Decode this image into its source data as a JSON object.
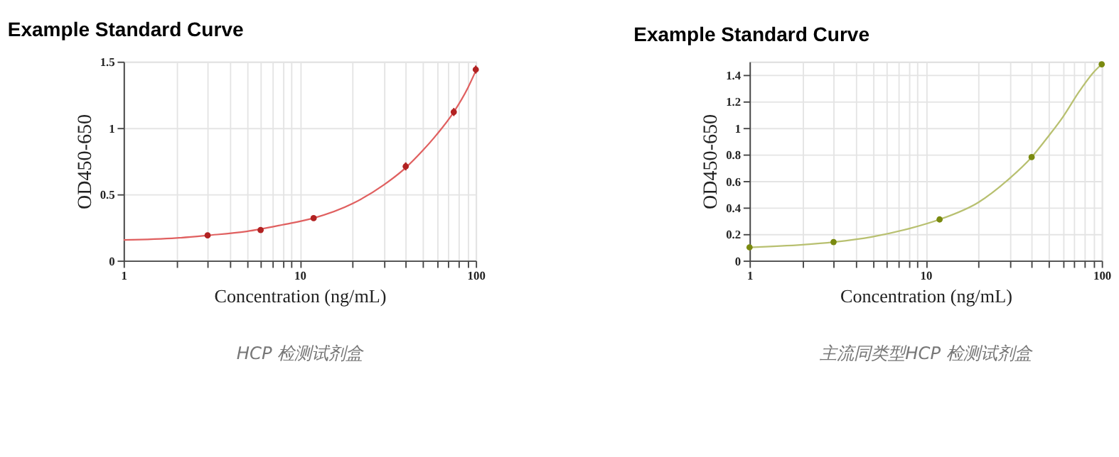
{
  "chart_data": [
    {
      "type": "scatter",
      "title": "Example Standard Curve",
      "xlabel": "Concentration (ng/mL)",
      "ylabel": "OD450-650",
      "log": "x",
      "grid": true,
      "marker": "circle",
      "xlim": [
        1,
        100
      ],
      "xticks": [
        1,
        {
          "value": 2,
          "label": null
        },
        {
          "value": 3,
          "label": null
        },
        {
          "value": 4,
          "label": null
        },
        {
          "value": 5,
          "label": null
        },
        {
          "value": 6,
          "label": null
        },
        {
          "value": 7,
          "label": null
        },
        {
          "value": 8,
          "label": null
        },
        {
          "value": 9,
          "label": null
        },
        10,
        {
          "value": 20,
          "label": null
        },
        {
          "value": 30,
          "label": null
        },
        {
          "value": 40,
          "label": null
        },
        {
          "value": 50,
          "label": null
        },
        {
          "value": 60,
          "label": null
        },
        {
          "value": 70,
          "label": null
        },
        {
          "value": 80,
          "label": null
        },
        {
          "value": 90,
          "label": null
        },
        100
      ],
      "ylim": [
        0,
        1.5
      ],
      "yticks": [
        0,
        0.5,
        1,
        1.5
      ],
      "series": [
        {
          "type": "line",
          "marker": "none",
          "color": "#e06060",
          "x": [
            1,
            2,
            3,
            5,
            8,
            12,
            20,
            30,
            40,
            50,
            60,
            75,
            90,
            100
          ],
          "values": [
            0.155,
            0.17,
            0.19,
            0.22,
            0.27,
            0.32,
            0.43,
            0.57,
            0.7,
            0.83,
            0.95,
            1.12,
            1.3,
            1.43
          ]
        },
        {
          "color": "#b22222",
          "x": [
            3,
            6,
            12,
            40,
            75,
            100
          ],
          "values": [
            0.19,
            0.23,
            0.32,
            0.71,
            1.12,
            1.44
          ],
          "errors": [
            null,
            0.015,
            null,
            0.03,
            0.03,
            0.03
          ]
        }
      ],
      "annotations": [
        "HCP 检测试剂盒"
      ]
    },
    {
      "type": "scatter",
      "title": "Example Standard Curve",
      "xlabel": "Concentration (ng/mL)",
      "ylabel": "OD450-650",
      "log": "x",
      "grid": true,
      "marker": "circle",
      "xlim": [
        1,
        100
      ],
      "xticks": [
        1,
        {
          "value": 2,
          "label": null
        },
        {
          "value": 3,
          "label": null
        },
        {
          "value": 4,
          "label": null
        },
        {
          "value": 5,
          "label": null
        },
        {
          "value": 6,
          "label": null
        },
        {
          "value": 7,
          "label": null
        },
        {
          "value": 8,
          "label": null
        },
        {
          "value": 9,
          "label": null
        },
        10,
        {
          "value": 20,
          "label": null
        },
        {
          "value": 30,
          "label": null
        },
        {
          "value": 40,
          "label": null
        },
        {
          "value": 50,
          "label": null
        },
        {
          "value": 60,
          "label": null
        },
        {
          "value": 70,
          "label": null
        },
        {
          "value": 80,
          "label": null
        },
        {
          "value": 90,
          "label": null
        },
        100
      ],
      "ylim": [
        0,
        1.5
      ],
      "yticks": [
        0,
        0.2,
        0.4,
        0.6,
        0.8,
        1,
        1.2,
        1.4
      ],
      "series": [
        {
          "type": "line",
          "marker": "none",
          "color": "#b8c070",
          "x": [
            1,
            2,
            3,
            5,
            8,
            12,
            20,
            30,
            40,
            50,
            60,
            75,
            90,
            100
          ],
          "values": [
            0.1,
            0.12,
            0.14,
            0.18,
            0.24,
            0.31,
            0.44,
            0.62,
            0.78,
            0.94,
            1.08,
            1.28,
            1.42,
            1.48
          ]
        },
        {
          "color": "#7a8a10",
          "x": [
            1,
            3,
            12,
            40,
            100
          ],
          "values": [
            0.1,
            0.14,
            0.31,
            0.78,
            1.48
          ]
        }
      ],
      "annotations": [
        "主流同类型HCP 检测试剂盒"
      ]
    }
  ]
}
